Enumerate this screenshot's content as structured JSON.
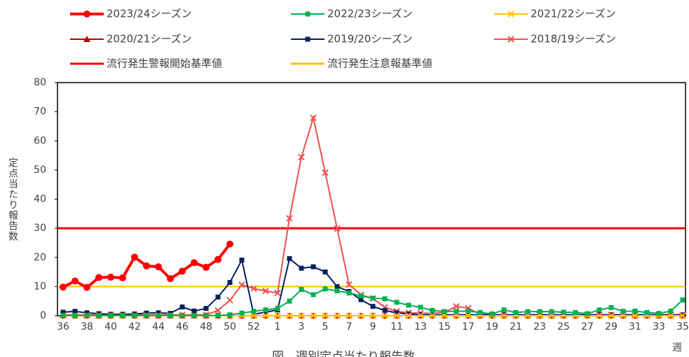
{
  "chart_data": {
    "type": "line",
    "y_label": "定点当たり報告数",
    "x_label": "週",
    "caption": "図　週別定点当たり報告数",
    "categories": [
      "36",
      null,
      "38",
      null,
      "40",
      null,
      "42",
      null,
      "44",
      null,
      "46",
      null,
      "48",
      null,
      "50",
      null,
      "52",
      null,
      "1",
      null,
      "3",
      null,
      "5",
      null,
      "7",
      null,
      "9",
      null,
      "11",
      null,
      "13",
      null,
      "15",
      null,
      "17",
      null,
      "19",
      null,
      "21",
      null,
      "23",
      null,
      "25",
      null,
      "27",
      null,
      "29",
      null,
      "31",
      null,
      "33",
      null,
      "35"
    ],
    "ylim": [
      0,
      80
    ],
    "yticks": [
      0,
      10,
      20,
      30,
      40,
      50,
      60,
      70,
      80
    ],
    "grid": false,
    "series": [
      {
        "name": "2023/24シーズン",
        "color": "#ff0000",
        "marker": "circle",
        "width": 4,
        "values": [
          9.8,
          11.9,
          9.7,
          13.1,
          13.2,
          13.0,
          20.1,
          17.1,
          16.8,
          12.7,
          15.3,
          18.2,
          16.6,
          19.3,
          24.6,
          null,
          null,
          null,
          null,
          null,
          null,
          null,
          null,
          null,
          null,
          null,
          null,
          null,
          null,
          null,
          null,
          null,
          null,
          null,
          null,
          null,
          null,
          null,
          null,
          null,
          null,
          null,
          null,
          null,
          null,
          null,
          null,
          null,
          null,
          null,
          null,
          null,
          null
        ]
      },
      {
        "name": "2022/23シーズン",
        "color": "#00b050",
        "marker": "square",
        "width": 2,
        "values": [
          0.1,
          0.1,
          0.1,
          0.1,
          0.1,
          0.1,
          0.1,
          0.1,
          0.1,
          0.1,
          0.1,
          0.1,
          0.1,
          0.1,
          0.3,
          0.9,
          1.5,
          2.0,
          2.5,
          5.0,
          9.0,
          7.2,
          9.2,
          8.5,
          7.8,
          6.8,
          6.0,
          5.8,
          4.6,
          3.6,
          2.9,
          1.8,
          1.4,
          1.5,
          1.6,
          1.1,
          0.6,
          2.0,
          1.1,
          1.4,
          1.4,
          1.4,
          1.2,
          1.1,
          0.7,
          2.0,
          2.8,
          1.5,
          1.6,
          1.1,
          0.8,
          1.6,
          5.4
        ]
      },
      {
        "name": "2021/22シーズン",
        "color": "#ffc000",
        "marker": "x",
        "width": 2,
        "values": [
          0,
          0,
          0,
          0,
          0,
          0,
          0,
          0,
          0,
          0,
          0,
          0,
          0,
          0,
          0,
          0,
          0,
          0,
          0,
          0,
          0,
          0,
          0,
          0,
          0,
          0,
          0,
          0,
          0,
          0,
          0,
          0,
          0,
          0,
          0,
          0,
          0,
          0,
          0,
          0,
          0,
          0,
          0,
          0,
          0,
          0,
          0,
          0,
          0,
          0,
          0,
          0,
          0
        ]
      },
      {
        "name": "2020/21シーズン",
        "color": "#c00000",
        "marker": "triangle",
        "width": 2,
        "values": [
          0,
          0,
          0,
          0,
          0,
          0,
          0,
          0,
          0,
          0,
          0,
          0,
          0,
          0,
          0,
          0,
          0,
          0,
          0,
          0,
          0,
          0,
          0,
          0,
          0,
          0,
          0,
          0,
          0,
          0,
          0,
          0,
          0,
          0,
          0,
          0,
          0,
          0,
          0,
          0,
          0,
          0,
          0,
          0,
          0,
          0,
          0,
          0,
          0,
          0,
          0,
          0,
          0
        ]
      },
      {
        "name": "2019/20シーズン",
        "color": "#002060",
        "marker": "square",
        "width": 2,
        "values": [
          1.2,
          1.5,
          1.0,
          0.7,
          0.5,
          0.5,
          0.6,
          0.9,
          1.0,
          0.8,
          3.0,
          1.6,
          2.5,
          6.4,
          11.4,
          19.1,
          0.5,
          1.2,
          2.0,
          19.6,
          16.3,
          16.8,
          15.0,
          10.0,
          8.3,
          5.5,
          3.2,
          1.8,
          1.0,
          0.6,
          0.3,
          0.3,
          0.3,
          0.3,
          0.3,
          0.3,
          0.3,
          0.3,
          0.3,
          0.3,
          0.3,
          0.3,
          0.3,
          0.3,
          0.3,
          0.3,
          0.3,
          0.3,
          0.3,
          0.3,
          0.3,
          0.3,
          0.3
        ]
      },
      {
        "name": "2018/19シーズン",
        "color": "#f05050",
        "marker": "x",
        "width": 2,
        "values": [
          0.3,
          0.3,
          0.3,
          0.3,
          0.3,
          0.3,
          0.3,
          0.3,
          0.3,
          0.3,
          0.3,
          0.3,
          0.3,
          1.8,
          5.3,
          10.6,
          9.3,
          8.5,
          7.8,
          33.4,
          54.4,
          67.9,
          49.1,
          29.9,
          10.7,
          7.2,
          5.9,
          2.9,
          1.5,
          1.0,
          0.9,
          0.8,
          1.1,
          3.2,
          2.6,
          0.5,
          0.3,
          0.3,
          0.3,
          0.3,
          0.3,
          0.3,
          0.3,
          0.3,
          0.3,
          0.3,
          0.3,
          0.3,
          0.3,
          0.3,
          0.3,
          0.3,
          0.3
        ]
      }
    ],
    "reference_lines": [
      {
        "name": "流行発生警報開始基準値",
        "color": "#ff0000",
        "value": 30,
        "width": 3
      },
      {
        "name": "流行発生注意報基準値",
        "color": "#ffc000",
        "value": 10,
        "width": 2
      }
    ]
  }
}
